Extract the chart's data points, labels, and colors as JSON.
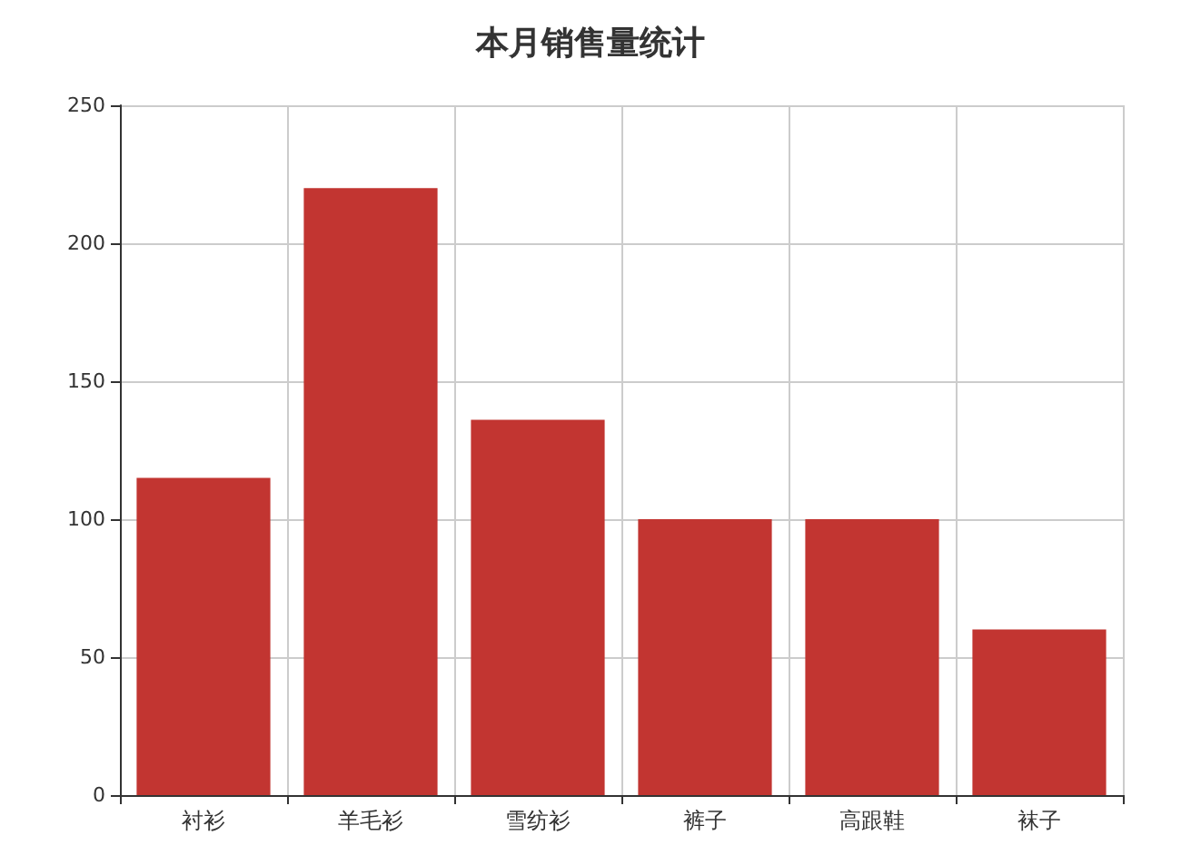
{
  "chart_data": {
    "type": "bar",
    "title": "本月销售量统计",
    "categories": [
      "衬衫",
      "羊毛衫",
      "雪纺衫",
      "裤子",
      "高跟鞋",
      "袜子"
    ],
    "values": [
      115,
      220,
      136,
      100,
      100,
      60
    ],
    "color": "#c23531",
    "ylim": [
      0,
      250
    ],
    "yticks": [
      0,
      50,
      100,
      150,
      200,
      250
    ],
    "grid": true
  }
}
